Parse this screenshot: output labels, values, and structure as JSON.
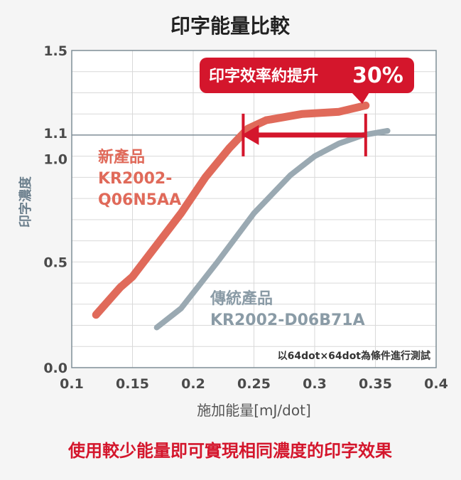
{
  "chart_data": {
    "type": "line",
    "title": "印字能量比較",
    "xlabel": "施加能量[mJ/dot]",
    "ylabel": "印字濃度",
    "xlim": [
      0.1,
      0.4
    ],
    "ylim": [
      0.0,
      1.5
    ],
    "x_ticks": [
      "0.1",
      "0.15",
      "0.2",
      "0.25",
      "0.3",
      "0.35",
      "0.4"
    ],
    "y_ticks": [
      "0.0",
      "0.5",
      "1.0",
      "1.1",
      "1.5"
    ],
    "grid": true,
    "reference_line": {
      "y": 1.1
    },
    "series": [
      {
        "name": "新產品 KR2002-Q06N5AA",
        "label_lines": [
          "新產品",
          "KR2002-",
          "Q06N5AA"
        ],
        "color": "#e06a5a",
        "x": [
          0.12,
          0.14,
          0.15,
          0.17,
          0.19,
          0.21,
          0.23,
          0.245,
          0.26,
          0.29,
          0.32,
          0.342
        ],
        "y": [
          0.25,
          0.38,
          0.43,
          0.58,
          0.73,
          0.9,
          1.04,
          1.13,
          1.17,
          1.2,
          1.21,
          1.24
        ]
      },
      {
        "name": "傳統產品 KR2002-D06B71A",
        "label_lines": [
          "傳統產品",
          "KR2002-D06B71A"
        ],
        "color": "#9aa9b2",
        "x": [
          0.17,
          0.19,
          0.22,
          0.25,
          0.28,
          0.3,
          0.32,
          0.34,
          0.36
        ],
        "y": [
          0.19,
          0.28,
          0.5,
          0.73,
          0.91,
          1.0,
          1.06,
          1.1,
          1.12
        ]
      }
    ],
    "arrow": {
      "from_x": 0.342,
      "to_x": 0.24,
      "y": 1.1,
      "color": "#d4162c"
    },
    "callout": {
      "text": "印字效率約提升",
      "highlight": "30%",
      "color": "#d4162c"
    },
    "note": "以64dot×64dot為條件進行測試",
    "footer": "使用較少能量即可實現相同濃度的印字效果"
  }
}
